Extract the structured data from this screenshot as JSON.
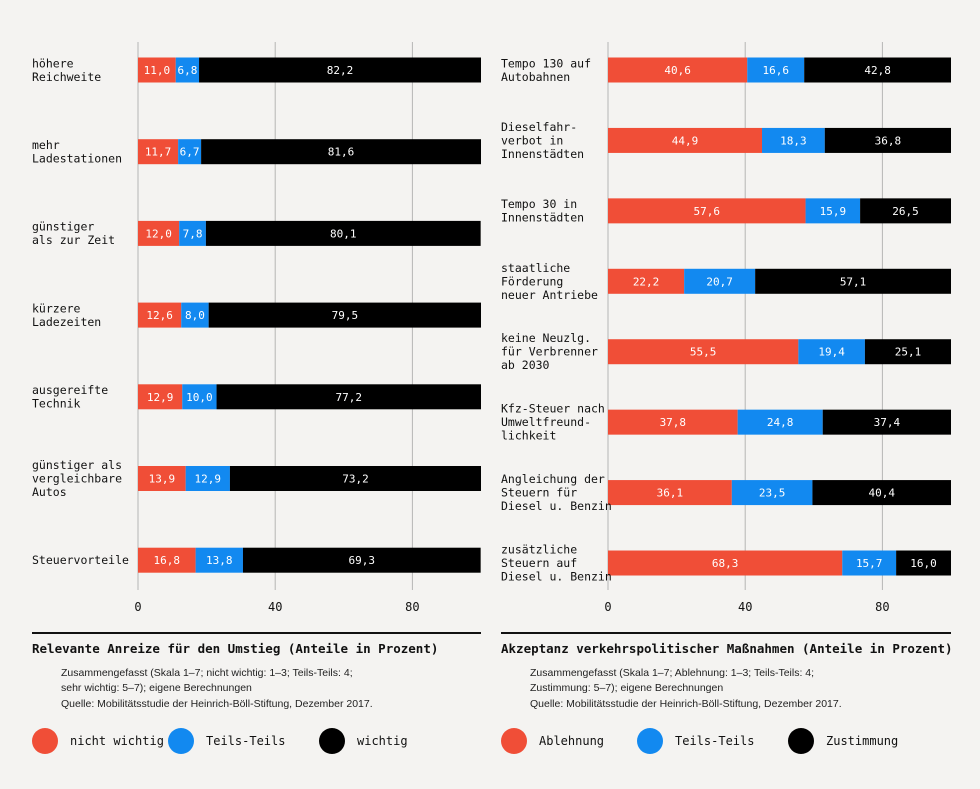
{
  "chart_data": [
    {
      "type": "bar",
      "stacked": true,
      "orientation": "horizontal",
      "title": "Relevante Anreize für den Umstieg (Anteile in Prozent)",
      "categories": [
        [
          "höhere",
          "Reichweite"
        ],
        [
          "mehr",
          "Ladestationen"
        ],
        [
          "günstiger",
          "als zur Zeit"
        ],
        [
          "kürzere",
          "Ladezeiten"
        ],
        [
          "ausgereifte",
          "Technik"
        ],
        [
          "günstiger als",
          "vergleichbare",
          "Autos"
        ],
        [
          "Steuervorteile"
        ]
      ],
      "series": [
        {
          "name": "nicht wichtig",
          "color": "#f04e37",
          "values": [
            11.0,
            11.7,
            12.0,
            12.6,
            12.9,
            13.9,
            16.8
          ],
          "labels": [
            "11,0",
            "11,7",
            "12,0",
            "12,6",
            "12,9",
            "13,9",
            "16,8"
          ]
        },
        {
          "name": "Teils-Teils",
          "color": "#1289f0",
          "values": [
            6.8,
            6.7,
            7.8,
            8.0,
            10.0,
            12.9,
            13.8
          ],
          "labels": [
            "6,8",
            "6,7",
            "7,8",
            "8,0",
            "10,0",
            "12,9",
            "13,8"
          ]
        },
        {
          "name": "wichtig",
          "color": "#000000",
          "values": [
            82.2,
            81.6,
            80.1,
            79.5,
            77.2,
            73.2,
            69.3
          ],
          "labels": [
            "82,2",
            "81,6",
            "80,1",
            "79,5",
            "77,2",
            "73,2",
            "69,3"
          ]
        }
      ],
      "xlim": [
        0,
        100
      ],
      "xticks": [
        0,
        40,
        80
      ],
      "note": "Zusammengefasst (Skala 1–7; nicht wichtig: 1–3; Teils-Teils: 4;\nsehr wichtig: 5–7); eigene Berechnungen",
      "source": "Quelle: Mobilitätsstudie der Heinrich-Böll-Stiftung, Dezember 2017."
    },
    {
      "type": "bar",
      "stacked": true,
      "orientation": "horizontal",
      "title": "Akzeptanz verkehrspolitischer Maßnahmen (Anteile in Prozent)",
      "categories": [
        [
          "Tempo 130 auf",
          "Autobahnen"
        ],
        [
          "Dieselfahr-",
          "verbot in",
          "Innenstädten"
        ],
        [
          "Tempo 30 in",
          "Innenstädten"
        ],
        [
          "staatliche",
          "Förderung",
          "neuer Antriebe"
        ],
        [
          "keine Neuzlg.",
          "für Verbrenner",
          "ab 2030"
        ],
        [
          "Kfz-Steuer nach",
          "Umweltfreund-",
          "lichkeit"
        ],
        [
          "Angleichung der",
          "Steuern für",
          "Diesel u. Benzin"
        ],
        [
          "zusätzliche",
          "Steuern auf",
          "Diesel u. Benzin"
        ]
      ],
      "series": [
        {
          "name": "Ablehnung",
          "color": "#f04e37",
          "values": [
            40.6,
            44.9,
            57.6,
            22.2,
            55.5,
            37.8,
            36.1,
            68.3
          ],
          "labels": [
            "40,6",
            "44,9",
            "57,6",
            "22,2",
            "55,5",
            "37,8",
            "36,1",
            "68,3"
          ]
        },
        {
          "name": "Teils-Teils",
          "color": "#1289f0",
          "values": [
            16.6,
            18.3,
            15.9,
            20.7,
            19.4,
            24.8,
            23.5,
            15.7
          ],
          "labels": [
            "16,6",
            "18,3",
            "15,9",
            "20,7",
            "19,4",
            "24,8",
            "23,5",
            "15,7"
          ]
        },
        {
          "name": "Zustimmung",
          "color": "#000000",
          "values": [
            42.8,
            36.8,
            26.5,
            57.1,
            25.1,
            37.4,
            40.4,
            16.0
          ],
          "labels": [
            "42,8",
            "36,8",
            "26,5",
            "57,1",
            "25,1",
            "37,4",
            "40,4",
            "16,0"
          ]
        }
      ],
      "xlim": [
        0,
        100
      ],
      "xticks": [
        0,
        40,
        80
      ],
      "note": "Zusammengefasst (Skala 1–7; Ablehnung: 1–3; Teils-Teils: 4;\nZustimmung: 5–7); eigene Berechnungen",
      "source": "Quelle: Mobilitätsstudie der Heinrich-Böll-Stiftung, Dezember 2017."
    }
  ]
}
